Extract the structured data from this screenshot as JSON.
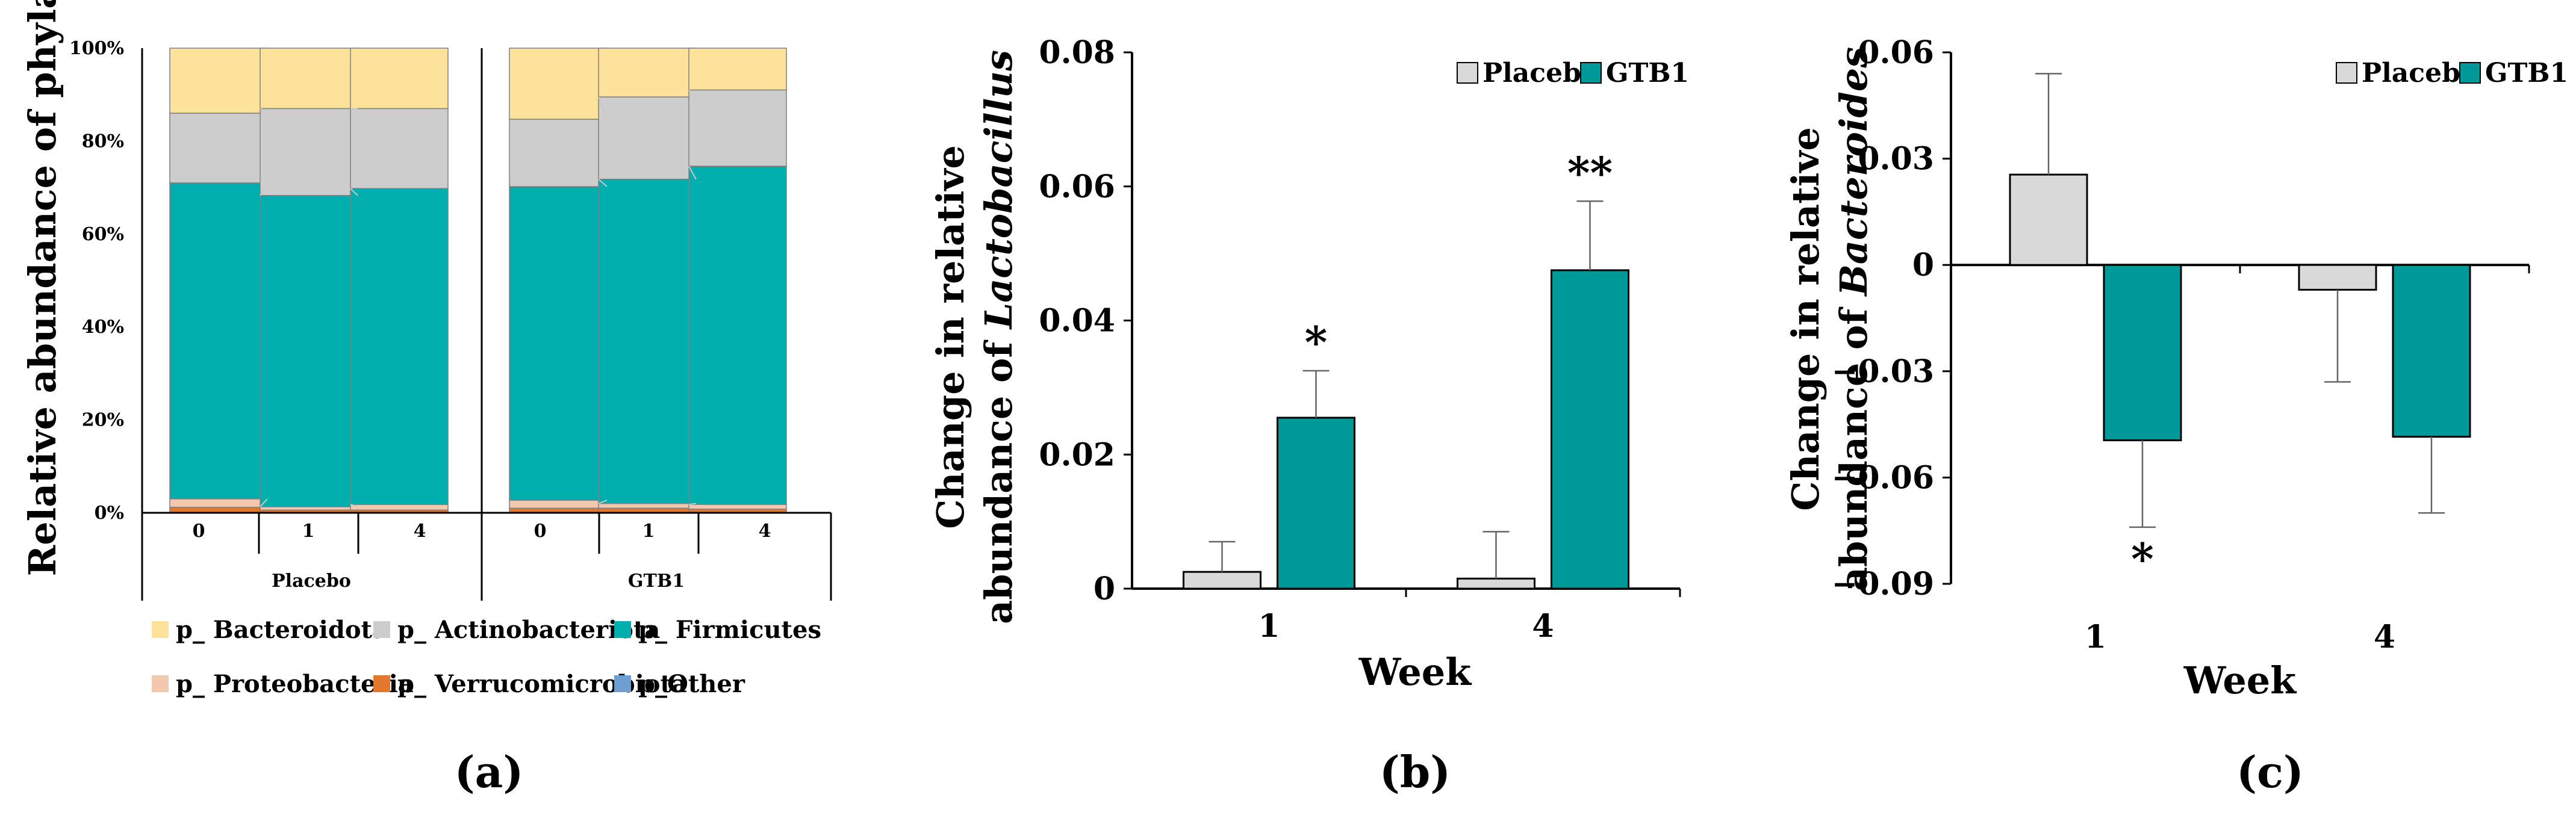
{
  "chart_data": [
    {
      "type": "bar",
      "stacked": true,
      "panel_label": "(a)",
      "ylabel": "Relative abundance of phyla",
      "ytick_labels": [
        "0%",
        "20%",
        "40%",
        "60%",
        "80%",
        "100%"
      ],
      "ylim": [
        0,
        100
      ],
      "groups": [
        {
          "name": "Placebo",
          "categories": [
            "0",
            "1",
            "4"
          ]
        },
        {
          "name": "GTB1",
          "categories": [
            "0",
            "1",
            "4"
          ]
        }
      ],
      "series": [
        {
          "name": "p_ Verrucomicrobiota",
          "color": "#E2782D",
          "values": [
            1.2,
            0.6,
            0.6,
            1.0,
            1.0,
            0.8
          ]
        },
        {
          "name": "p_ Proteobacteria",
          "color": "#F2C8AE",
          "values": [
            1.8,
            0.7,
            1.2,
            1.7,
            1.0,
            1.0
          ]
        },
        {
          "name": "p_ Firmicutes",
          "color": "#00AEAE",
          "values": [
            68.0,
            67.0,
            68.0,
            67.5,
            69.8,
            72.8
          ]
        },
        {
          "name": "p_ Actinobacteriota",
          "color": "#CDCDCD",
          "values": [
            15.0,
            18.7,
            17.2,
            14.5,
            17.7,
            16.4
          ]
        },
        {
          "name": "p_ Bacteroidota",
          "color": "#FCE29A",
          "values": [
            14.0,
            13.0,
            13.0,
            15.3,
            10.5,
            9.0
          ]
        },
        {
          "name": "p_Other",
          "color": "#6E9FD0",
          "values": [
            0,
            0,
            0,
            0,
            0,
            0
          ]
        }
      ],
      "legend_order": [
        "p_ Bacteroidota",
        "p_ Actinobacteriota",
        "p_ Firmicutes",
        "p_ Proteobacteria",
        "p_ Verrucomicrobiota",
        "p_Other"
      ]
    },
    {
      "type": "bar",
      "panel_label": "(b)",
      "ylabel_line1": "Change in relative",
      "ylabel_line2_prefix": "abundance of ",
      "ylabel_line2_italic": "Lactobacillus",
      "xlabel": "Week",
      "categories": [
        "1",
        "4"
      ],
      "ylim": [
        0,
        0.08
      ],
      "yticks": [
        0,
        0.02,
        0.04,
        0.06,
        0.08
      ],
      "ytick_labels": [
        "0",
        "0.02",
        "0.04",
        "0.06",
        "0.08"
      ],
      "series": [
        {
          "name": "Placebo",
          "color": "#D9D9D9",
          "values": [
            0.0025,
            0.0015
          ],
          "errors": [
            0.0045,
            0.007
          ]
        },
        {
          "name": "GTB1",
          "color": "#009999",
          "values": [
            0.0255,
            0.0475
          ],
          "errors": [
            0.007,
            0.0103
          ]
        }
      ],
      "annotations": [
        {
          "category": "1",
          "series": "GTB1",
          "text": "*"
        },
        {
          "category": "4",
          "series": "GTB1",
          "text": "**"
        }
      ]
    },
    {
      "type": "bar",
      "panel_label": "(c)",
      "ylabel_line1": "Change in relative",
      "ylabel_line2_prefix": "abundance of ",
      "ylabel_line2_italic": "Bacteroides",
      "xlabel": "Week",
      "categories": [
        "1",
        "4"
      ],
      "ylim": [
        -0.09,
        0.06
      ],
      "yticks": [
        -0.09,
        -0.06,
        -0.03,
        0,
        0.03,
        0.06
      ],
      "ytick_labels": [
        "−0.09",
        "−0.06",
        "−0.03",
        "0",
        "0.03",
        "0.06"
      ],
      "series": [
        {
          "name": "Placebo",
          "color": "#D9D9D9",
          "values": [
            0.0255,
            -0.007
          ],
          "errors": [
            0.0285,
            0.026
          ]
        },
        {
          "name": "GTB1",
          "color": "#009999",
          "values": [
            -0.0495,
            -0.0485
          ],
          "errors": [
            0.0245,
            0.0215
          ]
        }
      ],
      "annotations": [
        {
          "category": "1",
          "series": "GTB1",
          "text": "*"
        }
      ]
    }
  ]
}
